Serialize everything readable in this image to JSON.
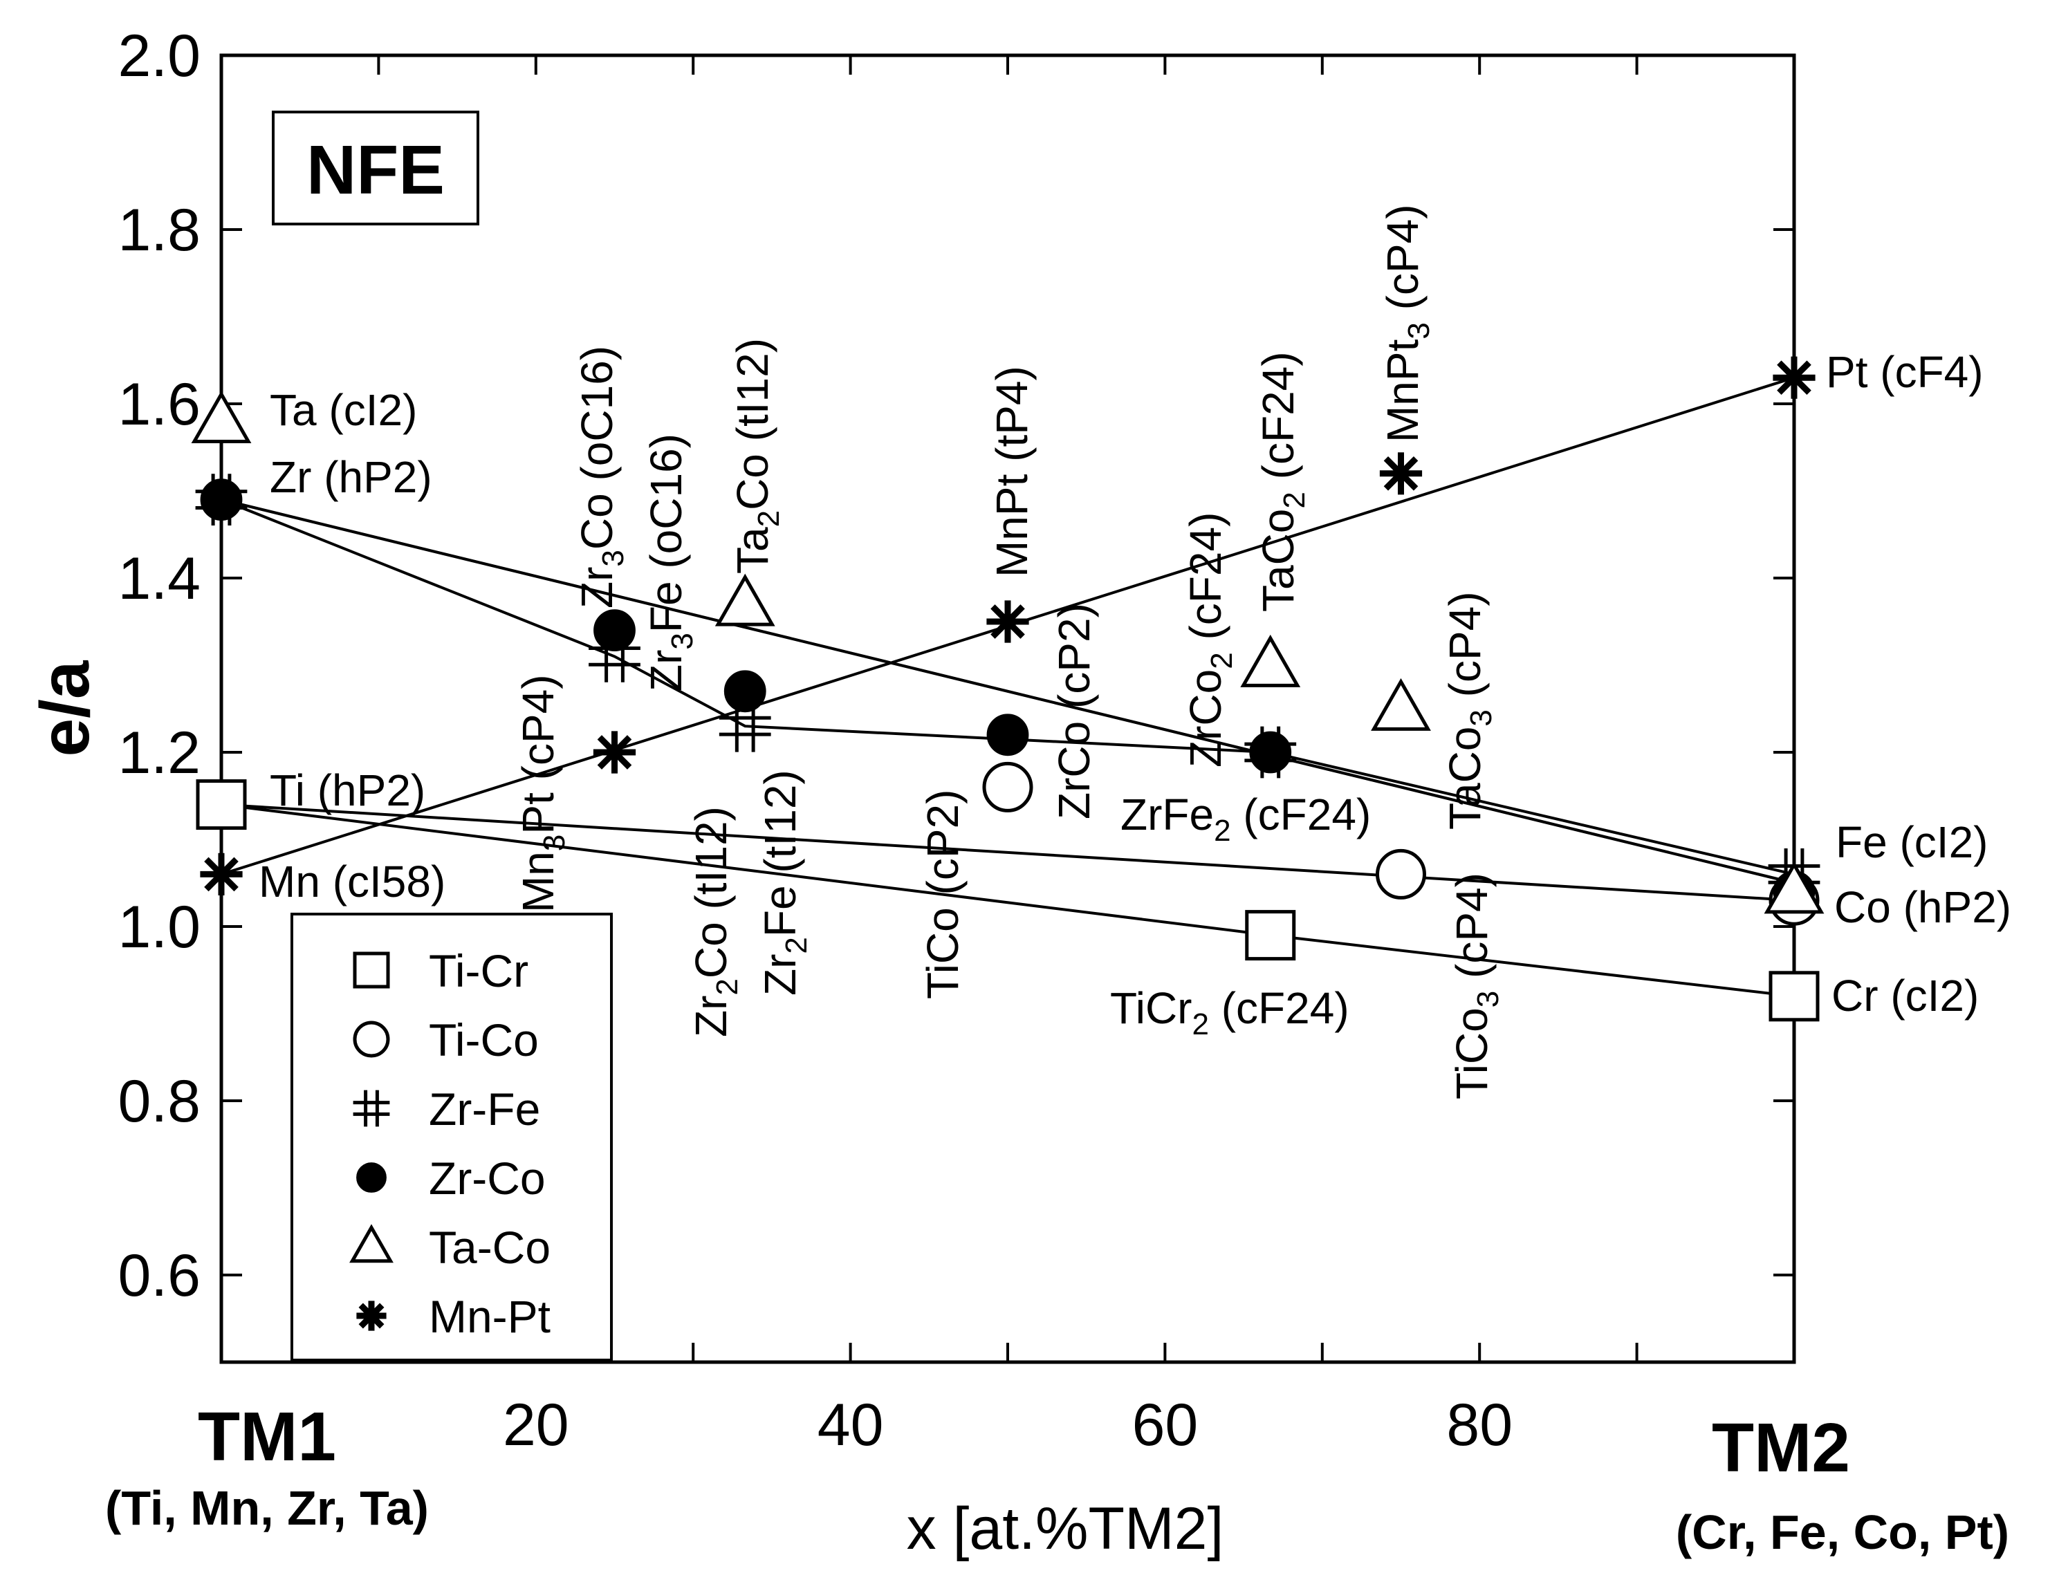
{
  "chart_data": {
    "type": "line",
    "title": "",
    "badge": "NFE",
    "ylabel": "e/a",
    "xlabel": "x [at.%TM2]",
    "xlim": [
      0,
      100
    ],
    "ylim": [
      0.5,
      2.0
    ],
    "x_ticks": [
      0,
      10,
      20,
      30,
      40,
      50,
      60,
      70,
      80,
      90,
      100
    ],
    "x_tick_labels": [
      "20",
      "40",
      "60",
      "80"
    ],
    "x_tick_label_values": [
      20,
      40,
      60,
      80
    ],
    "y_ticks": [
      0.6,
      0.8,
      1.0,
      1.2,
      1.4,
      1.6,
      1.8,
      2.0
    ],
    "y_tick_labels": [
      "0.6",
      "0.8",
      "1.0",
      "1.2",
      "1.4",
      "1.6",
      "1.8",
      "2.0"
    ],
    "tm1_label": "TM1",
    "tm1_sub": "(Ti, Mn, Zr, Ta)",
    "tm2_label": "TM2",
    "tm2_sub": "(Cr, Fe, Co, Pt)",
    "series": [
      {
        "name": "Ti-Cr",
        "marker": "square",
        "x": [
          0,
          66.7,
          100
        ],
        "y": [
          1.14,
          0.99,
          0.92
        ]
      },
      {
        "name": "Ti-Co",
        "marker": "circle",
        "x": [
          50,
          75,
          100
        ],
        "y": [
          1.16,
          1.06,
          1.03
        ],
        "line": [
          [
            0,
            100
          ],
          [
            1.14,
            1.03
          ]
        ]
      },
      {
        "name": "Zr-Fe",
        "marker": "hash",
        "x": [
          0,
          25,
          33.3,
          66.7,
          100
        ],
        "y": [
          1.49,
          1.31,
          1.23,
          1.2,
          1.06
        ]
      },
      {
        "name": "Zr-Co",
        "marker": "filled-circle",
        "x": [
          0,
          25,
          33.3,
          50,
          66.7,
          100
        ],
        "y": [
          1.49,
          1.34,
          1.27,
          1.22,
          1.2,
          1.04
        ],
        "line": [
          [
            0,
            100
          ],
          [
            1.49,
            1.05
          ]
        ]
      },
      {
        "name": "Ta-Co",
        "marker": "triangle",
        "x": [
          0,
          33.3,
          66.7,
          75,
          100
        ],
        "y": [
          1.58,
          1.37,
          1.3,
          1.25,
          1.04
        ],
        "line": [
          [
            0,
            100
          ],
          [
            1.49,
            1.05
          ]
        ]
      },
      {
        "name": "Mn-Pt",
        "marker": "asterisk",
        "x": [
          0,
          25,
          50,
          75,
          100
        ],
        "y": [
          1.06,
          1.2,
          1.35,
          1.52,
          1.63
        ],
        "line": [
          [
            0,
            100
          ],
          [
            1.06,
            1.63
          ]
        ]
      }
    ]
  },
  "annotations": {
    "ta": "Ta (cI2)",
    "zr": "Zr (hP2)",
    "ti": "Ti (hP2)",
    "mn": "Mn (cI58)",
    "pt": "Pt (cF4)",
    "fe": "Fe (cI2)",
    "co": "Co (hP2)",
    "cr": "Cr (cI2)",
    "zrfe2_a": "ZrFe",
    "zrfe2_sub": "2",
    "zrfe2_b": " (cF24)",
    "ticr2_a": "TiCr",
    "ticr2_sub": "2",
    "ticr2_b": " (cF24)",
    "zr3co_a": "Zr",
    "zr3co_sub": "3",
    "zr3co_b": "Co (oC16)",
    "zr3fe_a": "Zr",
    "zr3fe_sub": "3",
    "zr3fe_b": "Fe (oC16)",
    "ta2co_a": "Ta",
    "ta2co_sub": "2",
    "ta2co_b": "Co (tI12)",
    "mnpt": "MnPt (tP4)",
    "taco2_a": "TaCo",
    "taco2_sub": "2",
    "taco2_b": " (cF24)",
    "mnpt3_a": "MnPt",
    "mnpt3_sub": "3",
    "mnpt3_b": " (cP4)",
    "mn3pt_a": "Mn",
    "mn3pt_sub": "3",
    "mn3pt_b": "Pt (cP4)",
    "zr2co_a": "Zr",
    "zr2co_sub": "2",
    "zr2co_b": "Co (tI12)",
    "zr2fe_a": "Zr",
    "zr2fe_sub": "2",
    "zr2fe_b": "Fe (tI12)",
    "tico": "TiCo (cP2)",
    "zrco": "ZrCo (cP2)",
    "zrco2_a": "ZrCo",
    "zrco2_sub": "2",
    "zrco2_b": " (cF24)",
    "taco3_a": "TaCo",
    "taco3_sub": "3",
    "taco3_b": " (cP4)",
    "tico3_a": "TiCo",
    "tico3_sub": "3",
    "tico3_b": " (cP4)"
  }
}
